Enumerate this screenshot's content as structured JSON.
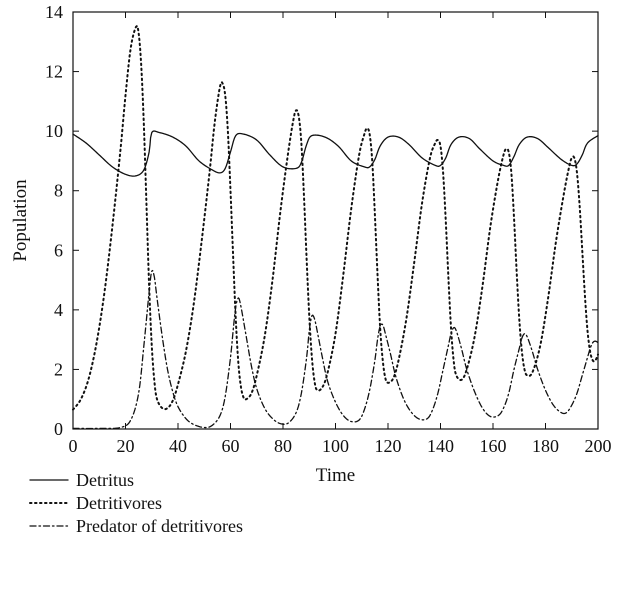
{
  "chart_data": {
    "type": "line",
    "xlabel": "Time",
    "ylabel": "Population",
    "xlim": [
      0,
      200
    ],
    "ylim": [
      0,
      14
    ],
    "xticks": [
      0,
      20,
      40,
      60,
      80,
      100,
      120,
      140,
      160,
      180,
      200
    ],
    "yticks": [
      0,
      2,
      4,
      6,
      8,
      10,
      12,
      14
    ],
    "grid": false,
    "legend_position": "bottom-left, below plot",
    "series": [
      {
        "name": "Detritus",
        "style": "solid",
        "color": "#111111",
        "points": [
          [
            0,
            9.9
          ],
          [
            5,
            9.6
          ],
          [
            10,
            9.2
          ],
          [
            15,
            8.8
          ],
          [
            20,
            8.55
          ],
          [
            24,
            8.5
          ],
          [
            27,
            8.7
          ],
          [
            29,
            9.3
          ],
          [
            30,
            9.95
          ],
          [
            33,
            9.95
          ],
          [
            38,
            9.8
          ],
          [
            43,
            9.5
          ],
          [
            48,
            9.0
          ],
          [
            53,
            8.7
          ],
          [
            56,
            8.6
          ],
          [
            58,
            8.75
          ],
          [
            60,
            9.3
          ],
          [
            62,
            9.85
          ],
          [
            65,
            9.9
          ],
          [
            70,
            9.7
          ],
          [
            75,
            9.2
          ],
          [
            80,
            8.8
          ],
          [
            85,
            8.75
          ],
          [
            87,
            8.95
          ],
          [
            89,
            9.55
          ],
          [
            91,
            9.85
          ],
          [
            96,
            9.8
          ],
          [
            101,
            9.5
          ],
          [
            106,
            9.0
          ],
          [
            111,
            8.8
          ],
          [
            113,
            8.8
          ],
          [
            115,
            9.05
          ],
          [
            117,
            9.5
          ],
          [
            120,
            9.8
          ],
          [
            124,
            9.8
          ],
          [
            128,
            9.55
          ],
          [
            133,
            9.1
          ],
          [
            138,
            8.85
          ],
          [
            140,
            8.85
          ],
          [
            142,
            9.1
          ],
          [
            144,
            9.55
          ],
          [
            147,
            9.8
          ],
          [
            151,
            9.75
          ],
          [
            155,
            9.4
          ],
          [
            160,
            9.0
          ],
          [
            164,
            8.85
          ],
          [
            166,
            8.85
          ],
          [
            168,
            9.15
          ],
          [
            170,
            9.55
          ],
          [
            173,
            9.8
          ],
          [
            177,
            9.75
          ],
          [
            181,
            9.45
          ],
          [
            186,
            9.05
          ],
          [
            190,
            8.85
          ],
          [
            192,
            8.9
          ],
          [
            194,
            9.2
          ],
          [
            196,
            9.6
          ],
          [
            200,
            9.85
          ]
        ]
      },
      {
        "name": "Detritivores",
        "style": "dotted",
        "color": "#111111",
        "points": [
          [
            0,
            0.65
          ],
          [
            3,
            1.0
          ],
          [
            6,
            1.7
          ],
          [
            9,
            2.9
          ],
          [
            12,
            4.6
          ],
          [
            15,
            6.8
          ],
          [
            18,
            9.3
          ],
          [
            20,
            11.2
          ],
          [
            22,
            12.8
          ],
          [
            24,
            13.5
          ],
          [
            25,
            13.3
          ],
          [
            26,
            12.2
          ],
          [
            27,
            10.2
          ],
          [
            28,
            7.5
          ],
          [
            29,
            4.8
          ],
          [
            30,
            2.8
          ],
          [
            31,
            1.6
          ],
          [
            32,
            1.0
          ],
          [
            34,
            0.7
          ],
          [
            36,
            0.7
          ],
          [
            38,
            0.95
          ],
          [
            40,
            1.5
          ],
          [
            43,
            2.6
          ],
          [
            46,
            4.2
          ],
          [
            49,
            6.3
          ],
          [
            52,
            8.6
          ],
          [
            54,
            10.3
          ],
          [
            56,
            11.5
          ],
          [
            57,
            11.6
          ],
          [
            58,
            11.2
          ],
          [
            59,
            10.0
          ],
          [
            60,
            8.0
          ],
          [
            61,
            5.8
          ],
          [
            62,
            3.7
          ],
          [
            63,
            2.2
          ],
          [
            64,
            1.4
          ],
          [
            65,
            1.05
          ],
          [
            66,
            1.0
          ],
          [
            68,
            1.2
          ],
          [
            70,
            1.8
          ],
          [
            73,
            3.1
          ],
          [
            76,
            5.0
          ],
          [
            79,
            7.3
          ],
          [
            82,
            9.3
          ],
          [
            84,
            10.4
          ],
          [
            85,
            10.7
          ],
          [
            86,
            10.5
          ],
          [
            87,
            9.6
          ],
          [
            88,
            7.8
          ],
          [
            89,
            5.7
          ],
          [
            90,
            3.8
          ],
          [
            91,
            2.4
          ],
          [
            92,
            1.6
          ],
          [
            93,
            1.3
          ],
          [
            95,
            1.4
          ],
          [
            97,
            1.9
          ],
          [
            100,
            3.2
          ],
          [
            103,
            5.2
          ],
          [
            106,
            7.4
          ],
          [
            109,
            9.2
          ],
          [
            111,
            9.9
          ],
          [
            112,
            10.1
          ],
          [
            113,
            9.9
          ],
          [
            114,
            9.0
          ],
          [
            115,
            7.2
          ],
          [
            116,
            5.2
          ],
          [
            117,
            3.4
          ],
          [
            118,
            2.3
          ],
          [
            119,
            1.7
          ],
          [
            120,
            1.55
          ],
          [
            122,
            1.7
          ],
          [
            124,
            2.3
          ],
          [
            127,
            3.7
          ],
          [
            130,
            5.6
          ],
          [
            133,
            7.6
          ],
          [
            136,
            9.1
          ],
          [
            138,
            9.6
          ],
          [
            139,
            9.7
          ],
          [
            140,
            9.5
          ],
          [
            141,
            8.6
          ],
          [
            142,
            7.0
          ],
          [
            143,
            5.1
          ],
          [
            144,
            3.4
          ],
          [
            145,
            2.3
          ],
          [
            146,
            1.8
          ],
          [
            148,
            1.65
          ],
          [
            150,
            2.0
          ],
          [
            153,
            3.1
          ],
          [
            156,
            4.8
          ],
          [
            159,
            6.8
          ],
          [
            162,
            8.4
          ],
          [
            164,
            9.2
          ],
          [
            165,
            9.4
          ],
          [
            166,
            9.3
          ],
          [
            167,
            8.6
          ],
          [
            168,
            7.1
          ],
          [
            169,
            5.3
          ],
          [
            170,
            3.7
          ],
          [
            171,
            2.6
          ],
          [
            172,
            2.0
          ],
          [
            173,
            1.8
          ],
          [
            175,
            1.9
          ],
          [
            178,
            2.8
          ],
          [
            181,
            4.4
          ],
          [
            184,
            6.3
          ],
          [
            187,
            7.9
          ],
          [
            189,
            8.8
          ],
          [
            190,
            9.1
          ],
          [
            191,
            9.1
          ],
          [
            192,
            8.6
          ],
          [
            193,
            7.5
          ],
          [
            194,
            6.0
          ],
          [
            195,
            4.5
          ],
          [
            196,
            3.3
          ],
          [
            197,
            2.6
          ],
          [
            198,
            2.3
          ],
          [
            199,
            2.3
          ],
          [
            200,
            2.5
          ]
        ]
      },
      {
        "name": "Predator of detritivores",
        "style": "dash-dot",
        "color": "#111111",
        "points": [
          [
            0,
            0.02
          ],
          [
            10,
            0.02
          ],
          [
            18,
            0.05
          ],
          [
            22,
            0.3
          ],
          [
            25,
            1.2
          ],
          [
            27,
            2.8
          ],
          [
            29,
            4.6
          ],
          [
            30,
            5.3
          ],
          [
            31,
            5.1
          ],
          [
            32,
            4.4
          ],
          [
            34,
            3.1
          ],
          [
            36,
            2.0
          ],
          [
            38,
            1.25
          ],
          [
            40,
            0.75
          ],
          [
            43,
            0.35
          ],
          [
            46,
            0.15
          ],
          [
            50,
            0.05
          ],
          [
            53,
            0.12
          ],
          [
            56,
            0.45
          ],
          [
            58,
            1.1
          ],
          [
            60,
            2.4
          ],
          [
            61,
            3.3
          ],
          [
            62,
            4.1
          ],
          [
            63,
            4.4
          ],
          [
            64,
            4.1
          ],
          [
            66,
            3.1
          ],
          [
            68,
            2.1
          ],
          [
            70,
            1.35
          ],
          [
            73,
            0.7
          ],
          [
            76,
            0.35
          ],
          [
            79,
            0.18
          ],
          [
            82,
            0.2
          ],
          [
            85,
            0.55
          ],
          [
            87,
            1.2
          ],
          [
            89,
            2.4
          ],
          [
            90,
            3.3
          ],
          [
            91,
            3.8
          ],
          [
            92,
            3.7
          ],
          [
            93,
            3.3
          ],
          [
            95,
            2.4
          ],
          [
            97,
            1.6
          ],
          [
            100,
            0.9
          ],
          [
            103,
            0.45
          ],
          [
            106,
            0.25
          ],
          [
            109,
            0.3
          ],
          [
            111,
            0.65
          ],
          [
            113,
            1.3
          ],
          [
            115,
            2.3
          ],
          [
            116,
            3.0
          ],
          [
            117,
            3.45
          ],
          [
            118,
            3.5
          ],
          [
            119,
            3.2
          ],
          [
            121,
            2.5
          ],
          [
            123,
            1.75
          ],
          [
            126,
            1.0
          ],
          [
            129,
            0.55
          ],
          [
            132,
            0.33
          ],
          [
            135,
            0.35
          ],
          [
            137,
            0.65
          ],
          [
            139,
            1.2
          ],
          [
            141,
            2.0
          ],
          [
            143,
            2.8
          ],
          [
            144,
            3.2
          ],
          [
            145,
            3.4
          ],
          [
            146,
            3.3
          ],
          [
            148,
            2.7
          ],
          [
            150,
            2.0
          ],
          [
            153,
            1.25
          ],
          [
            156,
            0.7
          ],
          [
            159,
            0.42
          ],
          [
            162,
            0.45
          ],
          [
            164,
            0.7
          ],
          [
            166,
            1.2
          ],
          [
            168,
            2.0
          ],
          [
            170,
            2.7
          ],
          [
            171,
            3.05
          ],
          [
            172,
            3.2
          ],
          [
            173,
            3.1
          ],
          [
            175,
            2.6
          ],
          [
            177,
            2.0
          ],
          [
            180,
            1.3
          ],
          [
            183,
            0.8
          ],
          [
            186,
            0.55
          ],
          [
            188,
            0.55
          ],
          [
            190,
            0.8
          ],
          [
            192,
            1.2
          ],
          [
            194,
            1.8
          ],
          [
            196,
            2.4
          ],
          [
            197,
            2.7
          ],
          [
            198,
            2.9
          ],
          [
            199,
            2.95
          ],
          [
            200,
            2.9
          ]
        ]
      }
    ]
  }
}
